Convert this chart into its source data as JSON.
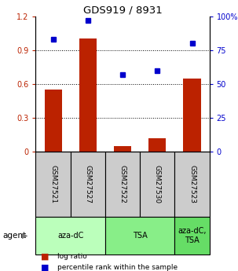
{
  "title": "GDS919 / 8931",
  "samples": [
    "GSM27521",
    "GSM27527",
    "GSM27522",
    "GSM27530",
    "GSM27523"
  ],
  "log_ratio": [
    0.55,
    1.0,
    0.05,
    0.12,
    0.65
  ],
  "percentile_rank": [
    83,
    97,
    57,
    60,
    80
  ],
  "ylim_left": [
    0,
    1.2
  ],
  "ylim_right": [
    0,
    100
  ],
  "yticks_left": [
    0,
    0.3,
    0.6,
    0.9,
    1.2
  ],
  "ytick_labels_left": [
    "0",
    "0.3",
    "0.6",
    "0.9",
    "1.2"
  ],
  "yticks_right": [
    0,
    25,
    50,
    75,
    100
  ],
  "ytick_labels_right": [
    "0",
    "25",
    "50",
    "75",
    "100%"
  ],
  "bar_color": "#bb2200",
  "dot_color": "#0000cc",
  "agent_groups": [
    {
      "label": "aza-dC",
      "span": [
        0,
        2
      ],
      "color": "#bbffbb"
    },
    {
      "label": "TSA",
      "span": [
        2,
        4
      ],
      "color": "#88ee88"
    },
    {
      "label": "aza-dC,\nTSA",
      "span": [
        4,
        5
      ],
      "color": "#66dd66"
    }
  ],
  "sample_bg_color": "#cccccc",
  "legend_items": [
    {
      "color": "#bb2200",
      "label": "log ratio"
    },
    {
      "color": "#0000cc",
      "label": "percentile rank within the sample"
    }
  ],
  "agent_label": "agent"
}
